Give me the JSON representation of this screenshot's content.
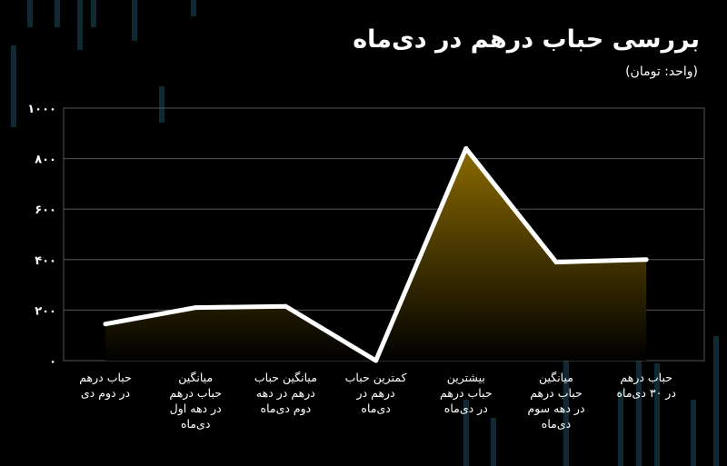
{
  "chart_data": {
    "type": "area",
    "title": "بررسی حباب درهم در دی‌ماه",
    "subtitle": "(واحد: تومان)",
    "categories": [
      "حباب درهم\nدر دوم دی",
      "میانگین\nحباب درهم\nدر دهه اول\nدی‌ماه",
      "میانگین حباب\nدرهم در دهه\nدوم دی‌ماه",
      "کمترین حباب\nدرهم در\nدی‌ماه",
      "بیشترین\nحباب درهم\nدر دی‌ماه",
      "میانگین\nحباب درهم\nدر دهه سوم\nدی‌ماه",
      "حباب درهم\nدر ۳۰ دی‌ماه"
    ],
    "values": [
      145,
      210,
      215,
      0,
      840,
      390,
      400
    ],
    "ylim": [
      0,
      1000
    ],
    "yticks": [
      0,
      200,
      400,
      600,
      800,
      1000
    ],
    "ytick_labels": [
      "۰",
      "۲۰۰",
      "۴۰۰",
      "۶۰۰",
      "۸۰۰",
      "۱۰۰۰"
    ],
    "grid": true,
    "colors": {
      "line": "#ffffff",
      "fill_top": "#8a6a00",
      "fill_bottom": "#000000",
      "grid": "#555555",
      "background": "#000000",
      "deco_bars": "#0f2a33"
    }
  }
}
